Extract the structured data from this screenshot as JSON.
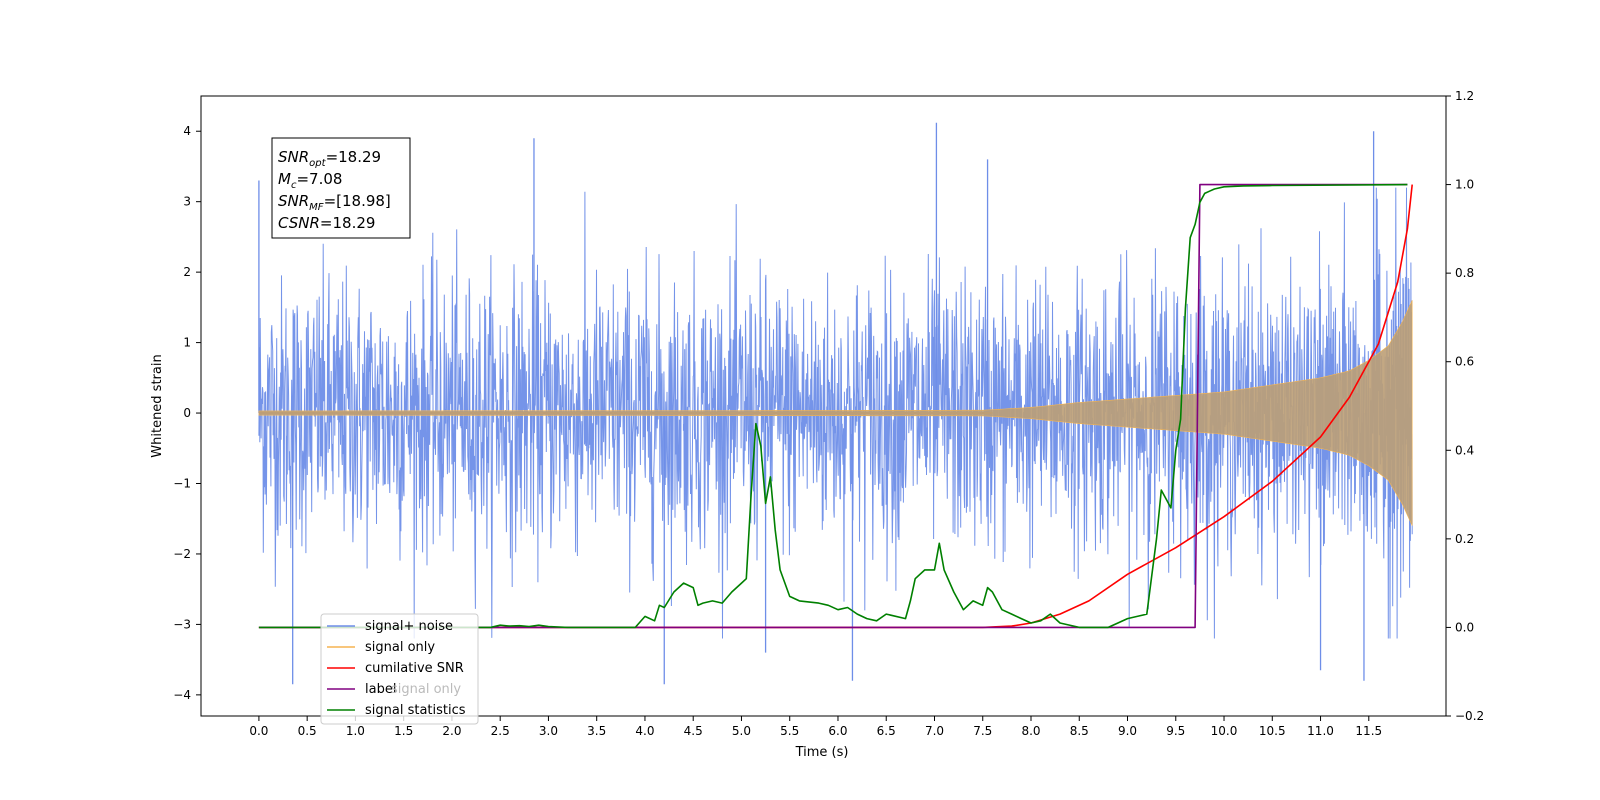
{
  "chart_data": {
    "type": "line",
    "xlabel": "Time (s)",
    "ylabel": "Whitened strain",
    "xlim": [
      -0.6,
      12.3
    ],
    "ylim": [
      -4.3,
      4.5
    ],
    "y2lim": [
      -0.2,
      1.2
    ],
    "x_ticks": [
      "0.0",
      "0.5",
      "1.0",
      "1.5",
      "2.0",
      "2.5",
      "3.0",
      "3.5",
      "4.0",
      "4.5",
      "5.0",
      "5.5",
      "6.0",
      "6.5",
      "7.0",
      "7.5",
      "8.0",
      "8.5",
      "9.0",
      "9.5",
      "10.0",
      "10.5",
      "11.0",
      "11.5"
    ],
    "y_ticks": [
      "4",
      "3",
      "2",
      "1",
      "0",
      "−1",
      "−2",
      "−3",
      "−4"
    ],
    "y2_ticks": [
      "1.2",
      "1.0",
      "0.8",
      "0.6",
      "0.4",
      "0.2",
      "0.0",
      "−0.2"
    ],
    "annotation": {
      "lines": [
        {
          "label": "SNR",
          "sub": "opt",
          "value": "=18.29"
        },
        {
          "label": "M",
          "sub": "c",
          "value": "=7.08"
        },
        {
          "label": "SNR",
          "sub": "MF",
          "value": "=[18.98]"
        },
        {
          "label": "CSNR",
          "sub": "",
          "value": "=18.29"
        }
      ]
    },
    "legend": {
      "position": "lower-left",
      "entries": [
        "signal+ noise",
        "signal only",
        "cumilative SNR",
        "label",
        "signal statistics"
      ],
      "obscured_text": "signal only"
    },
    "colors": {
      "noise": "#6e8ee8",
      "signal": "#f5b450",
      "signal_overlap": "#bd9e76",
      "csnr": "#ff0000",
      "label": "#800080",
      "stats": "#008000"
    },
    "series": [
      {
        "name": "signal+ noise",
        "axis": "left",
        "description_values": {
          "noise_band_typical": [
            -1.5,
            1.5
          ],
          "noise_extremes": [
            -3.9,
            4.1
          ],
          "x_range": [
            0.0,
            11.95
          ]
        },
        "spikes": [
          {
            "x": 0.0,
            "y": 3.3
          },
          {
            "x": 0.35,
            "y": -3.85
          },
          {
            "x": 2.85,
            "y": 3.9
          },
          {
            "x": 4.2,
            "y": -3.85
          },
          {
            "x": 5.25,
            "y": -3.4
          },
          {
            "x": 6.15,
            "y": -3.8
          },
          {
            "x": 7.02,
            "y": 4.12
          },
          {
            "x": 7.55,
            "y": 3.6
          },
          {
            "x": 11.55,
            "y": 4.0
          },
          {
            "x": 11.45,
            "y": -3.8
          },
          {
            "x": 11.0,
            "y": -3.65
          }
        ]
      },
      {
        "name": "signal only",
        "axis": "left",
        "envelope": {
          "x": [
            0.0,
            7.5,
            8.0,
            8.5,
            9.0,
            9.5,
            10.0,
            10.5,
            11.0,
            11.3,
            11.5,
            11.7,
            11.85,
            11.95
          ],
          "amp": [
            0.03,
            0.04,
            0.08,
            0.15,
            0.2,
            0.25,
            0.3,
            0.4,
            0.5,
            0.6,
            0.75,
            0.95,
            1.3,
            1.6
          ]
        }
      },
      {
        "name": "cumilative SNR",
        "axis": "right",
        "x": [
          0.0,
          7.5,
          7.8,
          8.0,
          8.3,
          8.6,
          9.0,
          9.5,
          10.0,
          10.5,
          11.0,
          11.3,
          11.6,
          11.8,
          11.9,
          11.95
        ],
        "y": [
          0.0,
          0.0,
          0.003,
          0.01,
          0.03,
          0.06,
          0.12,
          0.18,
          0.25,
          0.33,
          0.43,
          0.52,
          0.64,
          0.78,
          0.9,
          1.0
        ]
      },
      {
        "name": "label",
        "axis": "right",
        "x": [
          0.0,
          9.7,
          9.75,
          11.9
        ],
        "y": [
          0.0,
          0.0,
          1.0,
          1.0
        ]
      },
      {
        "name": "signal statistics",
        "axis": "right",
        "x": [
          0.0,
          2.4,
          2.5,
          2.6,
          2.7,
          2.8,
          2.9,
          3.0,
          3.2,
          3.5,
          3.9,
          4.0,
          4.1,
          4.15,
          4.2,
          4.3,
          4.4,
          4.5,
          4.55,
          4.6,
          4.7,
          4.8,
          4.9,
          5.0,
          5.05,
          5.1,
          5.15,
          5.2,
          5.25,
          5.3,
          5.35,
          5.4,
          5.5,
          5.6,
          5.8,
          5.9,
          6.0,
          6.1,
          6.2,
          6.3,
          6.4,
          6.5,
          6.7,
          6.75,
          6.8,
          6.9,
          7.0,
          7.05,
          7.1,
          7.2,
          7.3,
          7.4,
          7.5,
          7.55,
          7.6,
          7.7,
          7.8,
          7.9,
          8.0,
          8.1,
          8.2,
          8.3,
          8.5,
          8.8,
          8.9,
          9.0,
          9.1,
          9.2,
          9.3,
          9.35,
          9.45,
          9.5,
          9.55,
          9.6,
          9.65,
          9.7,
          9.75,
          9.8,
          9.85,
          9.9,
          10.0,
          10.2,
          10.5,
          11.9
        ],
        "y": [
          0.0,
          0.0,
          0.005,
          0.003,
          0.004,
          0.002,
          0.005,
          0.002,
          0.0,
          0.0,
          0.0,
          0.025,
          0.015,
          0.05,
          0.045,
          0.08,
          0.1,
          0.09,
          0.05,
          0.055,
          0.06,
          0.055,
          0.08,
          0.1,
          0.11,
          0.3,
          0.46,
          0.41,
          0.28,
          0.34,
          0.22,
          0.13,
          0.07,
          0.06,
          0.055,
          0.05,
          0.04,
          0.045,
          0.03,
          0.02,
          0.015,
          0.03,
          0.02,
          0.06,
          0.11,
          0.13,
          0.13,
          0.19,
          0.13,
          0.08,
          0.04,
          0.06,
          0.05,
          0.09,
          0.08,
          0.04,
          0.03,
          0.02,
          0.01,
          0.015,
          0.03,
          0.01,
          0.0,
          0.0,
          0.01,
          0.02,
          0.025,
          0.03,
          0.2,
          0.31,
          0.27,
          0.4,
          0.47,
          0.72,
          0.88,
          0.91,
          0.96,
          0.98,
          0.985,
          0.99,
          0.995,
          0.997,
          0.998,
          1.0
        ]
      }
    ]
  }
}
